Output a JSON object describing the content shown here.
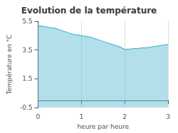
{
  "chart_data": {
    "type": "area",
    "title": "Evolution de la température",
    "xlabel": "heure par heure",
    "ylabel": "Température en °C",
    "x": [
      0,
      0.1,
      0.2,
      0.3,
      0.4,
      0.5,
      0.6,
      0.7,
      0.8,
      0.9,
      1.0,
      1.1,
      1.2,
      1.3,
      1.4,
      1.5,
      1.6,
      1.7,
      1.8,
      1.9,
      2.0,
      2.1,
      2.2,
      2.3,
      2.4,
      2.5,
      2.6,
      2.7,
      2.8,
      2.9,
      3.0
    ],
    "values": [
      5.2,
      5.15,
      5.1,
      5.05,
      5.0,
      4.9,
      4.8,
      4.7,
      4.6,
      4.55,
      4.5,
      4.45,
      4.4,
      4.3,
      4.2,
      4.1,
      4.0,
      3.9,
      3.8,
      3.7,
      3.55,
      3.55,
      3.6,
      3.6,
      3.65,
      3.65,
      3.7,
      3.75,
      3.8,
      3.85,
      3.9
    ],
    "color": "#55b8d0",
    "xlim": [
      0,
      3
    ],
    "xticks": [
      0,
      1,
      2,
      3
    ],
    "ylim": [
      -0.5,
      5.5
    ],
    "yticks": [
      -0.5,
      1.5,
      3.5,
      5.5
    ],
    "grid": "x"
  }
}
